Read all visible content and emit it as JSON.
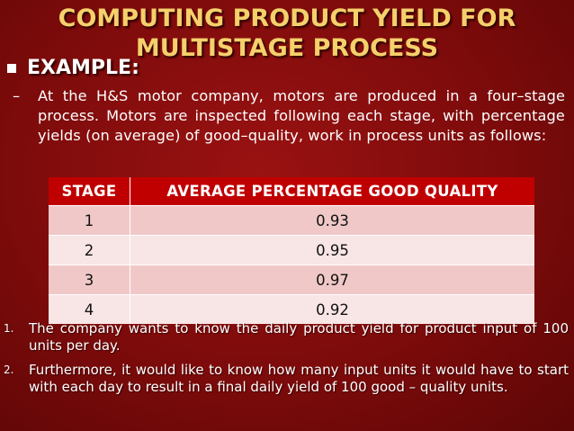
{
  "slide": {
    "title_line1": "COMPUTING PRODUCT YIELD FOR",
    "title_line2": "MULTISTAGE PROCESS",
    "bullet": "EXAMPLE:",
    "dash": "–",
    "paragraph": "At the H&S motor company, motors are produced in a four–stage process. Motors are inspected following each stage, with percentage yields (on average) of good–quality, work in process units as follows:",
    "colors": {
      "title": "#f5d06b",
      "background": "#7d0b0b",
      "table_header": "#c00000"
    }
  },
  "table": {
    "headers": [
      "STAGE",
      "AVERAGE PERCENTAGE GOOD QUALITY"
    ],
    "rows": [
      [
        "1",
        "0.93"
      ],
      [
        "2",
        "0.95"
      ],
      [
        "3",
        "0.97"
      ],
      [
        "4",
        "0.92"
      ]
    ]
  },
  "questions": [
    {
      "num": "1.",
      "text": "The company wants to know the daily product yield for product input of 100 units per day."
    },
    {
      "num": "2.",
      "text": "Furthermore, it would like to know how many input units it would have to start with each day to result in a final daily yield of 100 good – quality units."
    }
  ]
}
